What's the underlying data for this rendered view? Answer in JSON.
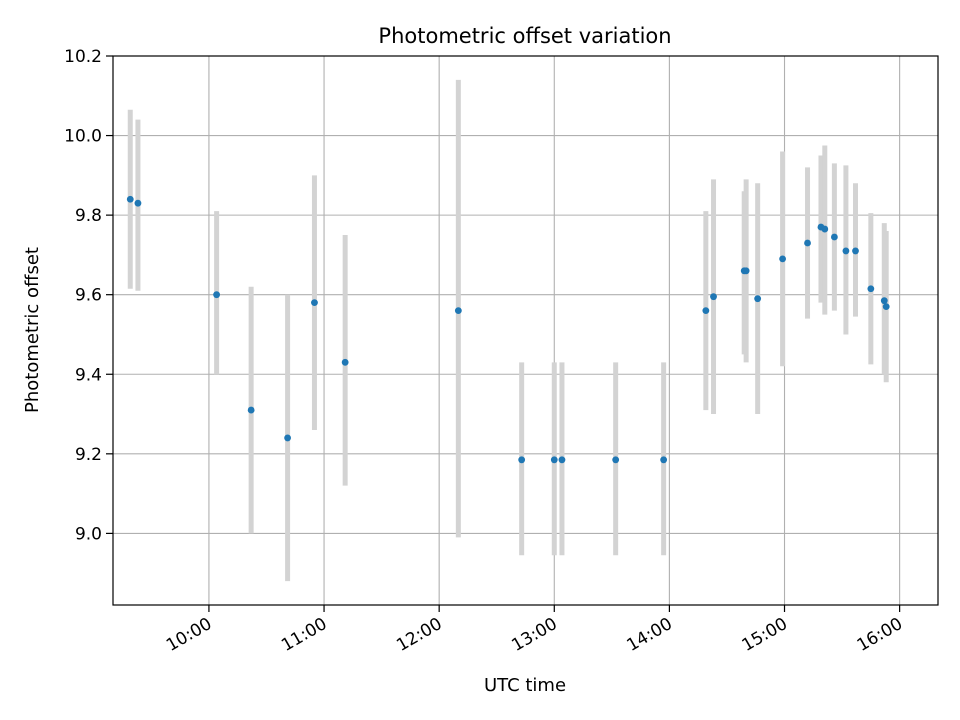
{
  "chart_data": {
    "type": "scatter",
    "title": "Photometric offset variation",
    "xlabel": "UTC time",
    "ylabel": "Photometric offset",
    "x_unit": "UTC hours",
    "xlim": [
      "09:10",
      "16:20"
    ],
    "ylim": [
      8.82,
      10.2
    ],
    "x_ticks": [
      "10:00",
      "11:00",
      "12:00",
      "13:00",
      "14:00",
      "15:00",
      "16:00"
    ],
    "y_ticks": [
      "9.0",
      "9.2",
      "9.4",
      "9.6",
      "9.8",
      "10.0",
      "10.2"
    ],
    "grid": true,
    "marker_color": "#1f77b4",
    "errorbar_color": "#d3d3d3",
    "points": [
      {
        "x": "09:19",
        "y": 9.84,
        "ylow": 9.615,
        "yhigh": 10.065
      },
      {
        "x": "09:23",
        "y": 9.83,
        "ylow": 9.61,
        "yhigh": 10.04
      },
      {
        "x": "10:04",
        "y": 9.6,
        "ylow": 9.4,
        "yhigh": 9.81
      },
      {
        "x": "10:22",
        "y": 9.31,
        "ylow": 9.0,
        "yhigh": 9.62
      },
      {
        "x": "10:41",
        "y": 9.24,
        "ylow": 8.88,
        "yhigh": 9.6
      },
      {
        "x": "10:55",
        "y": 9.58,
        "ylow": 9.26,
        "yhigh": 9.9
      },
      {
        "x": "11:11",
        "y": 9.43,
        "ylow": 9.12,
        "yhigh": 9.75
      },
      {
        "x": "12:10",
        "y": 9.56,
        "ylow": 8.99,
        "yhigh": 10.14
      },
      {
        "x": "12:43",
        "y": 9.185,
        "ylow": 8.945,
        "yhigh": 9.43
      },
      {
        "x": "13:00",
        "y": 9.185,
        "ylow": 8.945,
        "yhigh": 9.43
      },
      {
        "x": "13:04",
        "y": 9.185,
        "ylow": 8.945,
        "yhigh": 9.43
      },
      {
        "x": "13:32",
        "y": 9.185,
        "ylow": 8.945,
        "yhigh": 9.43
      },
      {
        "x": "13:57",
        "y": 9.185,
        "ylow": 8.945,
        "yhigh": 9.43
      },
      {
        "x": "14:19",
        "y": 9.56,
        "ylow": 9.31,
        "yhigh": 9.81
      },
      {
        "x": "14:23",
        "y": 9.595,
        "ylow": 9.3,
        "yhigh": 9.89
      },
      {
        "x": "14:39",
        "y": 9.66,
        "ylow": 9.45,
        "yhigh": 9.86
      },
      {
        "x": "14:40",
        "y": 9.66,
        "ylow": 9.43,
        "yhigh": 9.89
      },
      {
        "x": "14:46",
        "y": 9.59,
        "ylow": 9.3,
        "yhigh": 9.88
      },
      {
        "x": "14:59",
        "y": 9.69,
        "ylow": 9.42,
        "yhigh": 9.96
      },
      {
        "x": "15:12",
        "y": 9.73,
        "ylow": 9.54,
        "yhigh": 9.92
      },
      {
        "x": "15:19",
        "y": 9.77,
        "ylow": 9.58,
        "yhigh": 9.95
      },
      {
        "x": "15:21",
        "y": 9.765,
        "ylow": 9.55,
        "yhigh": 9.975
      },
      {
        "x": "15:26",
        "y": 9.745,
        "ylow": 9.56,
        "yhigh": 9.93
      },
      {
        "x": "15:32",
        "y": 9.71,
        "ylow": 9.5,
        "yhigh": 9.925
      },
      {
        "x": "15:37",
        "y": 9.71,
        "ylow": 9.545,
        "yhigh": 9.88
      },
      {
        "x": "15:45",
        "y": 9.615,
        "ylow": 9.425,
        "yhigh": 9.805
      },
      {
        "x": "15:52",
        "y": 9.585,
        "ylow": 9.4,
        "yhigh": 9.78
      },
      {
        "x": "15:53",
        "y": 9.57,
        "ylow": 9.38,
        "yhigh": 9.76
      }
    ]
  }
}
